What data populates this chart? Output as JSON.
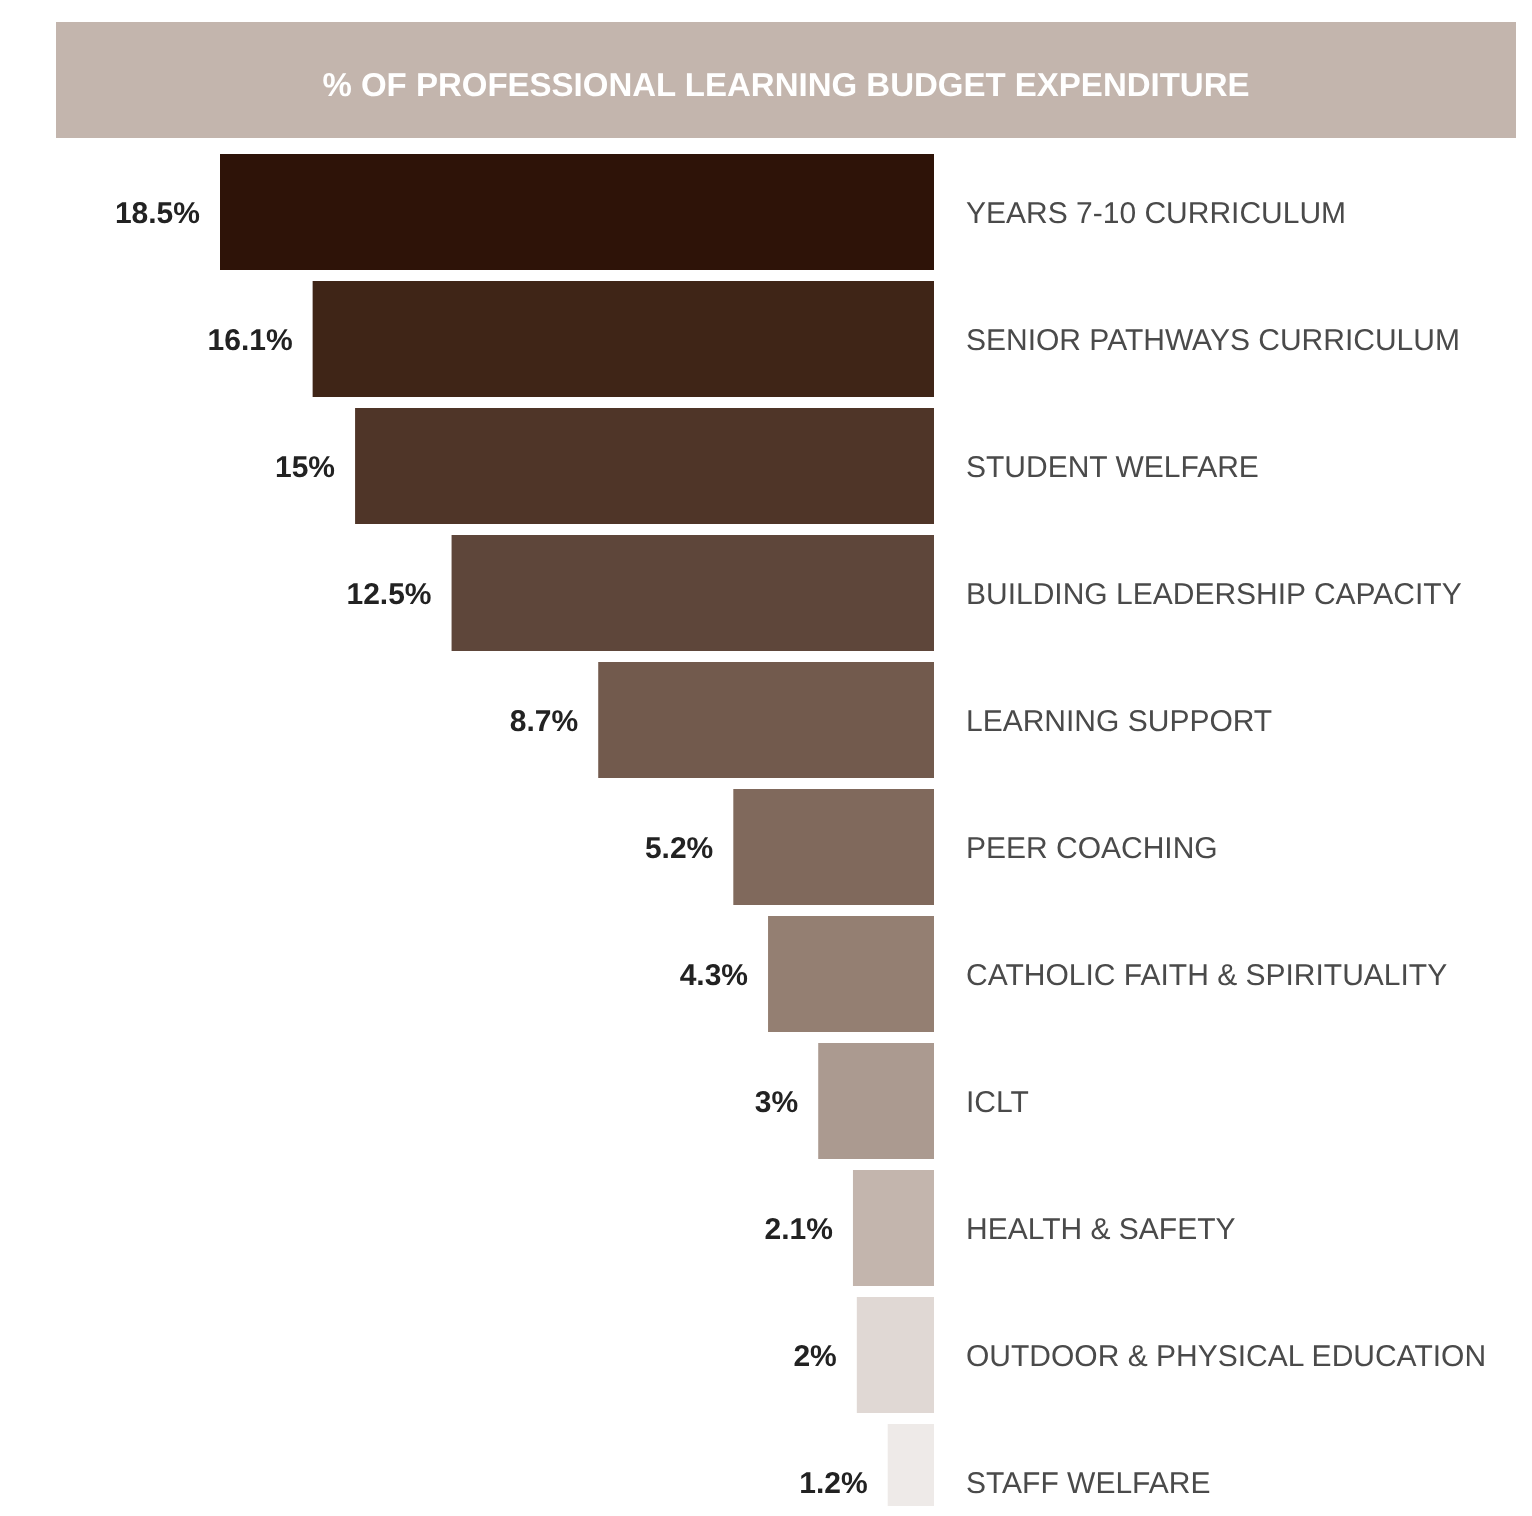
{
  "chart_data": {
    "type": "bar",
    "orientation": "horizontal",
    "title": "% OF PROFESSIONAL LEARNING BUDGET EXPENDITURE",
    "categories": [
      "YEARS 7-10 CURRICULUM",
      "SENIOR PATHWAYS CURRICULUM",
      "STUDENT WELFARE",
      "BUILDING LEADERSHIP CAPACITY",
      "LEARNING SUPPORT",
      "PEER COACHING",
      "CATHOLIC FAITH & SPIRITUALITY",
      "ICLT",
      "HEALTH & SAFETY",
      "OUTDOOR & PHYSICAL EDUCATION",
      "STAFF WELFARE"
    ],
    "values": [
      18.5,
      16.1,
      15,
      12.5,
      8.7,
      5.2,
      4.3,
      3,
      2.1,
      2,
      1.2
    ],
    "value_labels": [
      "18.5%",
      "16.1%",
      "15%",
      "12.5%",
      "8.7%",
      "5.2%",
      "4.3%",
      "3%",
      "2.1%",
      "2%",
      "1.2%"
    ],
    "colors": [
      "#2e1308",
      "#3f2517",
      "#4f3528",
      "#5e463a",
      "#725a4d",
      "#80695c",
      "#947f72",
      "#ab9a90",
      "#c3b5ad",
      "#e0d8d4",
      "#eeeae8"
    ]
  }
}
